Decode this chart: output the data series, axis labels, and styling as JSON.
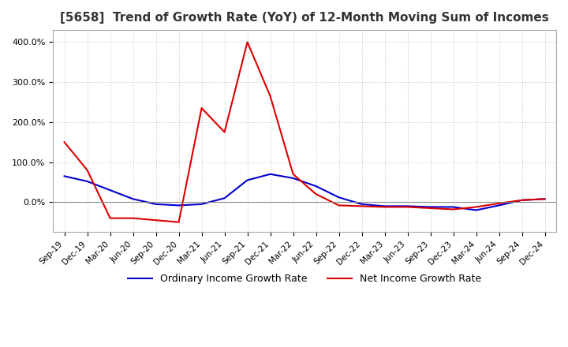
{
  "title": "[5658]  Trend of Growth Rate (YoY) of 12-Month Moving Sum of Incomes",
  "title_fontsize": 11,
  "xlabel": "",
  "ylabel": "",
  "ylim": [
    -75,
    430
  ],
  "yticks": [
    0,
    100,
    200,
    300,
    400
  ],
  "ytick_labels": [
    "0.0%",
    "100.0%",
    "200.0%",
    "300.0%",
    "400.0%"
  ],
  "background_color": "#ffffff",
  "plot_bg_color": "#ffffff",
  "grid_color": "#bbbbbb",
  "ordinary_color": "#0000cc",
  "net_color": "#dd0000",
  "legend_labels": [
    "Ordinary Income Growth Rate",
    "Net Income Growth Rate"
  ],
  "x_labels": [
    "Sep-19",
    "Dec-19",
    "Mar-20",
    "Jun-20",
    "Sep-20",
    "Dec-20",
    "Mar-21",
    "Jun-21",
    "Sep-21",
    "Dec-21",
    "Mar-22",
    "Jun-22",
    "Sep-22",
    "Dec-22",
    "Mar-23",
    "Jun-23",
    "Sep-23",
    "Dec-23",
    "Mar-24",
    "Jun-24",
    "Sep-24",
    "Dec-24"
  ],
  "ordinary_income": [
    65,
    52,
    30,
    8,
    -5,
    -8,
    -5,
    10,
    55,
    70,
    60,
    40,
    12,
    -5,
    -10,
    -10,
    -12,
    -12,
    -20,
    -8,
    5,
    8
  ],
  "net_income": [
    150,
    80,
    -40,
    -40,
    -45,
    -50,
    235,
    175,
    400,
    265,
    70,
    20,
    -8,
    -10,
    -12,
    -12,
    -15,
    -18,
    -12,
    -3,
    5,
    8
  ]
}
